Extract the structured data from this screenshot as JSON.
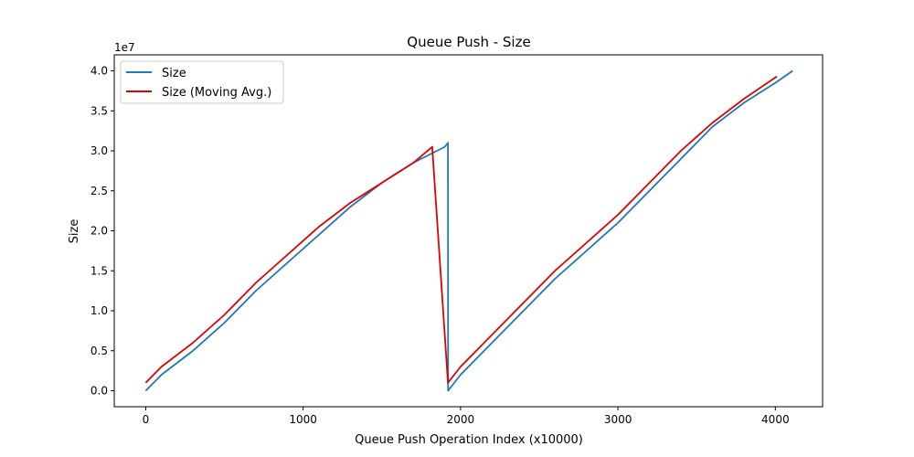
{
  "chart_data": {
    "type": "line",
    "title": "Queue Push - Size",
    "xlabel": "Queue Push Operation Index (x10000)",
    "ylabel": "Size",
    "y_offset_label": "1e7",
    "xlim": [
      -200,
      4300
    ],
    "ylim": [
      -0.2,
      4.2
    ],
    "xticks": [
      0,
      1000,
      2000,
      3000,
      4000
    ],
    "xtick_labels": [
      "0",
      "1000",
      "2000",
      "3000",
      "4000"
    ],
    "yticks": [
      0.0,
      0.5,
      1.0,
      1.5,
      2.0,
      2.5,
      3.0,
      3.5,
      4.0
    ],
    "ytick_labels": [
      "0.0",
      "0.5",
      "1.0",
      "1.5",
      "2.0",
      "2.5",
      "3.0",
      "3.5",
      "4.0"
    ],
    "grid": false,
    "legend_position": "upper-left",
    "series": [
      {
        "name": "Size",
        "color": "#1f77b4",
        "x": [
          0,
          100,
          300,
          500,
          700,
          900,
          1100,
          1300,
          1500,
          1700,
          1900,
          1920,
          1921,
          2000,
          2200,
          2400,
          2600,
          2800,
          3000,
          3200,
          3400,
          3600,
          3800,
          4000,
          4110
        ],
        "y": [
          0.0,
          0.2,
          0.5,
          0.85,
          1.25,
          1.6,
          1.95,
          2.3,
          2.6,
          2.85,
          3.05,
          3.1,
          0.0,
          0.2,
          0.6,
          1.0,
          1.4,
          1.75,
          2.1,
          2.5,
          2.9,
          3.3,
          3.6,
          3.85,
          4.0
        ]
      },
      {
        "name": "Size (Moving Avg.)",
        "color": "#e00000",
        "x": [
          0,
          100,
          300,
          500,
          700,
          900,
          1100,
          1300,
          1500,
          1700,
          1820,
          1920,
          2000,
          2200,
          2400,
          2600,
          2800,
          3000,
          3200,
          3400,
          3600,
          3800,
          4010
        ],
        "y": [
          0.1,
          0.3,
          0.6,
          0.95,
          1.35,
          1.7,
          2.05,
          2.35,
          2.6,
          2.85,
          3.05,
          0.1,
          0.3,
          0.7,
          1.1,
          1.5,
          1.85,
          2.2,
          2.6,
          3.0,
          3.35,
          3.65,
          3.93
        ]
      }
    ]
  }
}
